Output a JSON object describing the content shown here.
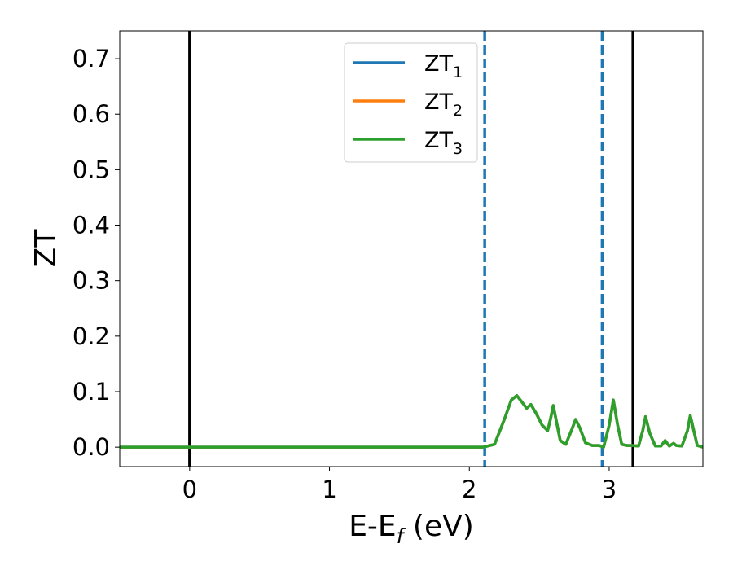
{
  "chart_data": {
    "type": "line",
    "xlabel": {
      "base": "E-E",
      "sub": "f",
      "unit": " (eV)"
    },
    "ylabel": "ZT",
    "xlim": [
      -0.5,
      3.67
    ],
    "ylim": [
      -0.035,
      0.75
    ],
    "xticks": [
      {
        "value": 0,
        "label": "0"
      },
      {
        "value": 1,
        "label": "1"
      },
      {
        "value": 2,
        "label": "2"
      },
      {
        "value": 3,
        "label": "3"
      }
    ],
    "yticks": [
      {
        "value": 0.0,
        "label": "0.0"
      },
      {
        "value": 0.1,
        "label": "0.1"
      },
      {
        "value": 0.2,
        "label": "0.2"
      },
      {
        "value": 0.3,
        "label": "0.3"
      },
      {
        "value": 0.4,
        "label": "0.4"
      },
      {
        "value": 0.5,
        "label": "0.5"
      },
      {
        "value": 0.6,
        "label": "0.6"
      },
      {
        "value": 0.7,
        "label": "0.7"
      }
    ],
    "grid": false,
    "legend_position": "top-center",
    "vlines": [
      {
        "x": 0.0,
        "style": "solid",
        "color": "#000000"
      },
      {
        "x": 3.17,
        "style": "solid",
        "color": "#000000"
      },
      {
        "x": 2.11,
        "style": "dashed",
        "color": "#1f77b4"
      },
      {
        "x": 2.95,
        "style": "dashed",
        "color": "#1f77b4"
      }
    ],
    "series": [
      {
        "name": "ZT",
        "sub": "1",
        "color": "#1f77b4",
        "x": [
          -0.5,
          2.1,
          2.18,
          2.25,
          2.3,
          2.34,
          2.38,
          2.41,
          2.44,
          2.48,
          2.52,
          2.56,
          2.58,
          2.6,
          2.62,
          2.65,
          2.69,
          2.73,
          2.76,
          2.79,
          2.83,
          2.88,
          2.93,
          2.96,
          3.0,
          3.03,
          3.06,
          3.09,
          3.13,
          3.17,
          3.21,
          3.24,
          3.26,
          3.29,
          3.33,
          3.37,
          3.4,
          3.43,
          3.46,
          3.48,
          3.52,
          3.56,
          3.58,
          3.6,
          3.63,
          3.67
        ],
        "y": [
          0.0,
          0.0,
          0.005,
          0.05,
          0.085,
          0.093,
          0.08,
          0.07,
          0.077,
          0.06,
          0.04,
          0.03,
          0.05,
          0.075,
          0.05,
          0.012,
          0.005,
          0.03,
          0.05,
          0.035,
          0.008,
          0.003,
          0.003,
          0.0,
          0.04,
          0.085,
          0.04,
          0.005,
          0.003,
          0.003,
          0.002,
          0.03,
          0.055,
          0.025,
          0.002,
          0.002,
          0.012,
          0.002,
          0.007,
          0.003,
          0.002,
          0.03,
          0.057,
          0.035,
          0.003,
          0.0
        ]
      },
      {
        "name": "ZT",
        "sub": "2",
        "color": "#ff7f0e",
        "x": [
          -0.5,
          2.1,
          2.18,
          2.25,
          2.3,
          2.34,
          2.38,
          2.41,
          2.44,
          2.48,
          2.52,
          2.56,
          2.58,
          2.6,
          2.62,
          2.65,
          2.69,
          2.73,
          2.76,
          2.79,
          2.83,
          2.88,
          2.93,
          2.96,
          3.0,
          3.03,
          3.06,
          3.09,
          3.13,
          3.17,
          3.21,
          3.24,
          3.26,
          3.29,
          3.33,
          3.37,
          3.4,
          3.43,
          3.46,
          3.48,
          3.52,
          3.56,
          3.58,
          3.6,
          3.63,
          3.67
        ],
        "y": [
          0.0,
          0.0,
          0.005,
          0.05,
          0.085,
          0.093,
          0.08,
          0.07,
          0.077,
          0.06,
          0.04,
          0.03,
          0.05,
          0.075,
          0.05,
          0.012,
          0.005,
          0.03,
          0.05,
          0.035,
          0.008,
          0.003,
          0.003,
          0.0,
          0.04,
          0.085,
          0.04,
          0.005,
          0.003,
          0.003,
          0.002,
          0.03,
          0.055,
          0.025,
          0.002,
          0.002,
          0.012,
          0.002,
          0.007,
          0.003,
          0.002,
          0.03,
          0.057,
          0.035,
          0.003,
          0.0
        ]
      },
      {
        "name": "ZT",
        "sub": "3",
        "color": "#2ca02c",
        "x": [
          -0.5,
          2.1,
          2.18,
          2.25,
          2.3,
          2.34,
          2.38,
          2.41,
          2.44,
          2.48,
          2.52,
          2.56,
          2.58,
          2.6,
          2.62,
          2.65,
          2.69,
          2.73,
          2.76,
          2.79,
          2.83,
          2.88,
          2.93,
          2.96,
          3.0,
          3.03,
          3.06,
          3.09,
          3.13,
          3.17,
          3.21,
          3.24,
          3.26,
          3.29,
          3.33,
          3.37,
          3.4,
          3.43,
          3.46,
          3.48,
          3.52,
          3.56,
          3.58,
          3.6,
          3.63,
          3.67
        ],
        "y": [
          0.0,
          0.0,
          0.005,
          0.05,
          0.085,
          0.093,
          0.08,
          0.07,
          0.077,
          0.06,
          0.04,
          0.03,
          0.05,
          0.075,
          0.05,
          0.012,
          0.005,
          0.03,
          0.05,
          0.035,
          0.008,
          0.003,
          0.003,
          0.0,
          0.04,
          0.085,
          0.04,
          0.005,
          0.003,
          0.003,
          0.002,
          0.03,
          0.055,
          0.025,
          0.002,
          0.002,
          0.012,
          0.002,
          0.007,
          0.003,
          0.002,
          0.03,
          0.057,
          0.035,
          0.003,
          0.0
        ]
      }
    ]
  }
}
